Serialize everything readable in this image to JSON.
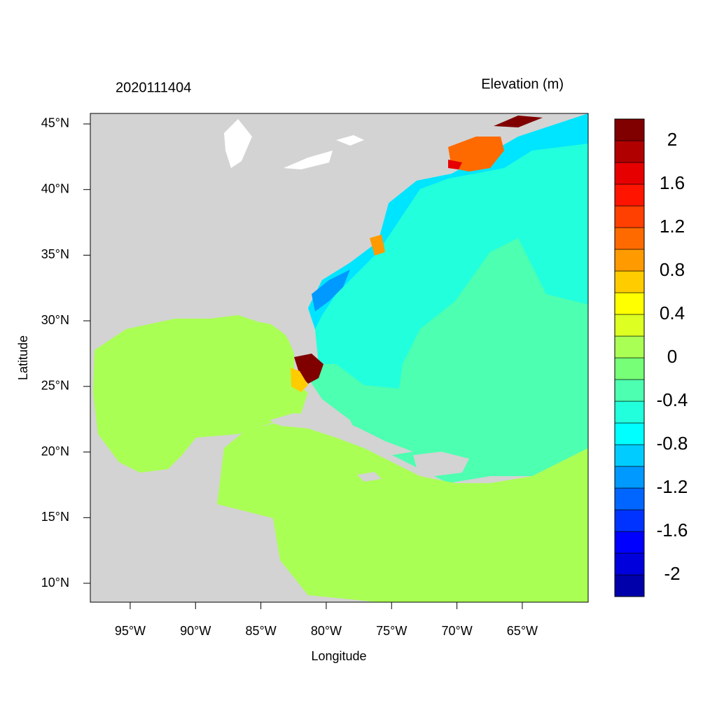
{
  "map": {
    "title_left": "2020111404",
    "title_right": "Elevation (m)",
    "xlabel": "Longitude",
    "ylabel": "Latitude",
    "xlim": [
      -98.05,
      -59.96
    ],
    "ylim": [
      8.56,
      45.8
    ],
    "xticks": [
      {
        "value": -95,
        "label": "95°W"
      },
      {
        "value": -90,
        "label": "90°W"
      },
      {
        "value": -85,
        "label": "85°W"
      },
      {
        "value": -80,
        "label": "80°W"
      },
      {
        "value": -75,
        "label": "75°W"
      },
      {
        "value": -70,
        "label": "70°W"
      },
      {
        "value": -65,
        "label": "65°W"
      }
    ],
    "yticks": [
      {
        "value": 10,
        "label": "10°N"
      },
      {
        "value": 15,
        "label": "15°N"
      },
      {
        "value": 20,
        "label": "20°N"
      },
      {
        "value": 25,
        "label": "25°N"
      },
      {
        "value": 30,
        "label": "30°N"
      },
      {
        "value": 35,
        "label": "35°N"
      },
      {
        "value": 40,
        "label": "40°N"
      },
      {
        "value": 45,
        "label": "45°N"
      }
    ],
    "colorbar": {
      "levels": [
        -2,
        -1.8,
        -1.6,
        -1.4,
        -1.2,
        -1,
        -0.8,
        -0.6,
        -0.4,
        -0.2,
        0,
        0.2,
        0.4,
        0.6,
        0.8,
        1,
        1.2,
        1.4,
        1.6,
        1.8,
        2
      ],
      "colors": [
        "#0000aa",
        "#0000dd",
        "#0000ff",
        "#0033ff",
        "#0066ff",
        "#0099ff",
        "#00ccff",
        "#00ffff",
        "#22ffdd",
        "#4dffb0",
        "#77ff77",
        "#aaff55",
        "#ddff22",
        "#ffff00",
        "#ffcc00",
        "#ff9a00",
        "#ff6a00",
        "#ff4000",
        "#ff1400",
        "#e60000",
        "#b00000",
        "#800000"
      ],
      "ticks": [
        2,
        1.6,
        1.2,
        0.8,
        0.4,
        0,
        -0.4,
        -0.8,
        -1.2,
        -1.6,
        -2
      ]
    }
  }
}
